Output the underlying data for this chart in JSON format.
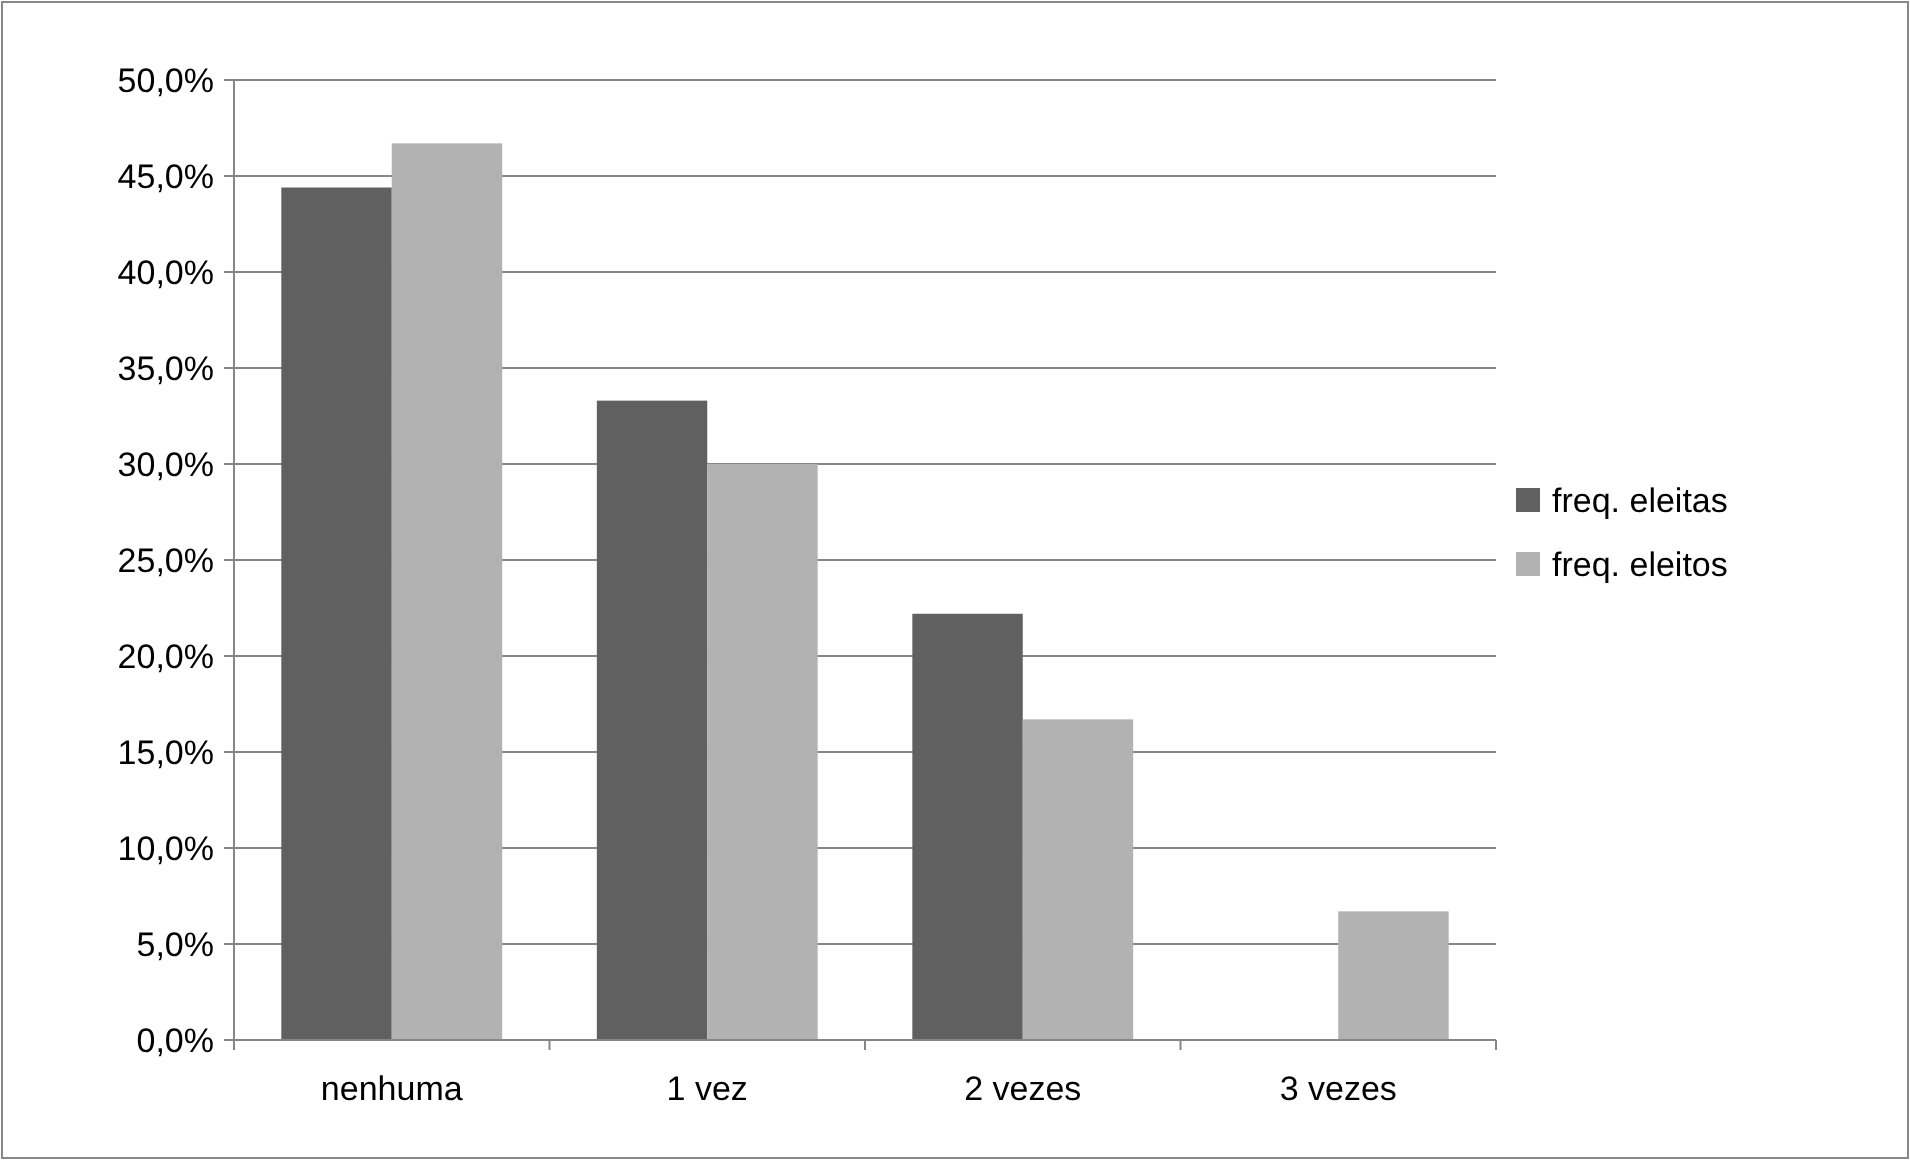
{
  "chart_data": {
    "type": "bar",
    "categories": [
      "nenhuma",
      "1 vez",
      "2 vezes",
      "3 vezes"
    ],
    "series": [
      {
        "name": "freq. eleitas",
        "color": "#606060",
        "values": [
          44.4,
          33.3,
          22.2,
          0
        ]
      },
      {
        "name": "freq. eleitos",
        "color": "#b2b2b2",
        "values": [
          46.7,
          30.0,
          16.7,
          6.7
        ]
      }
    ],
    "ylim": [
      0,
      50
    ],
    "yticks": [
      {
        "value": 0,
        "label": "0,0%"
      },
      {
        "value": 5,
        "label": "5,0%"
      },
      {
        "value": 10,
        "label": "10,0%"
      },
      {
        "value": 15,
        "label": "15,0%"
      },
      {
        "value": 20,
        "label": "20,0%"
      },
      {
        "value": 25,
        "label": "25,0%"
      },
      {
        "value": 30,
        "label": "30,0%"
      },
      {
        "value": 35,
        "label": "35,0%"
      },
      {
        "value": 40,
        "label": "40,0%"
      },
      {
        "value": 45,
        "label": "45,0%"
      },
      {
        "value": 50,
        "label": "50,0%"
      }
    ],
    "grid": "y",
    "legend": "right"
  }
}
